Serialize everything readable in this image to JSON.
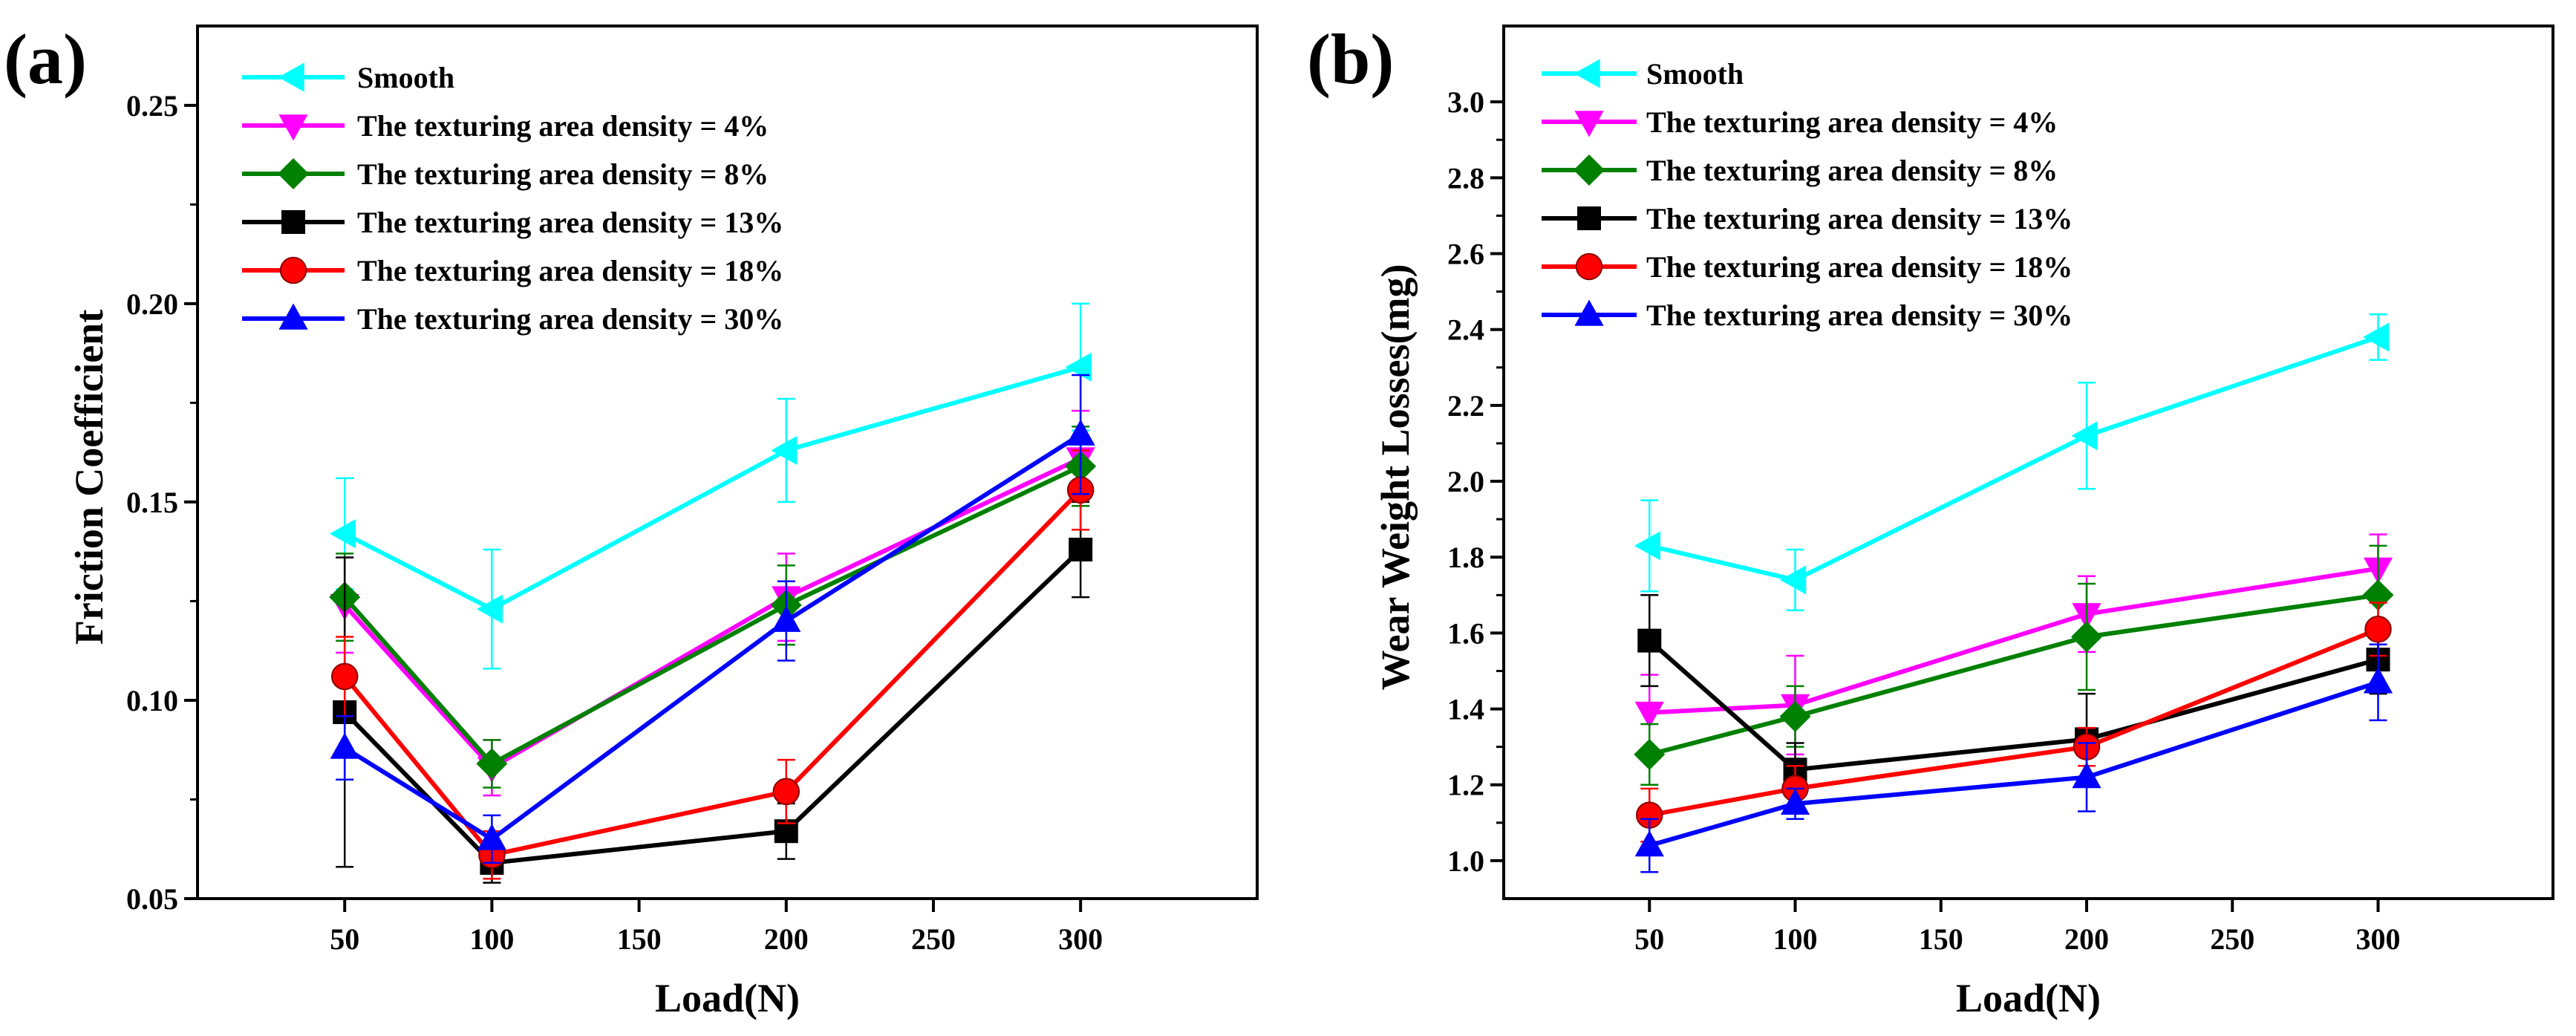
{
  "chart_data": [
    {
      "panel_label": "(a)",
      "type": "line",
      "xlabel": "Load(N)",
      "ylabel": "Friction Coefficient",
      "xlim": [
        0,
        360
      ],
      "ylim": [
        0.05,
        0.27
      ],
      "x": [
        50,
        100,
        200,
        300
      ],
      "xticks": [
        50,
        100,
        150,
        200,
        250,
        300
      ],
      "xtick_labels": [
        "50",
        "100",
        "150",
        "200",
        "250",
        "300"
      ],
      "yticks": [
        0.05,
        0.1,
        0.15,
        0.2,
        0.25
      ],
      "ytick_labels": [
        "0.05",
        "0.10",
        "0.15",
        "0.20",
        "0.25"
      ],
      "grid": false,
      "legend_position": "top-left",
      "series": [
        {
          "name": "Smooth",
          "color": "#00FFFF",
          "marker": "triangle-left",
          "values": [
            0.142,
            0.123,
            0.163,
            0.184
          ],
          "errors": [
            0.014,
            0.015,
            0.013,
            0.016
          ]
        },
        {
          "name": "The texturing area density = 4%",
          "color": "#FF00FF",
          "marker": "triangle-down",
          "values": [
            0.124,
            0.083,
            0.126,
            0.161
          ],
          "errors": [
            0.012,
            0.007,
            0.011,
            0.012
          ]
        },
        {
          "name": "The texturing area density = 8%",
          "color": "#008000",
          "marker": "diamond",
          "values": [
            0.126,
            0.084,
            0.124,
            0.159
          ],
          "errors": [
            0.011,
            0.006,
            0.01,
            0.01
          ]
        },
        {
          "name": "The texturing area density = 13%",
          "color": "#000000",
          "marker": "square",
          "values": [
            0.097,
            0.059,
            0.067,
            0.138
          ],
          "errors": [
            0.039,
            0.005,
            0.007,
            0.012
          ]
        },
        {
          "name": "The texturing area density = 18%",
          "color": "#FF0000",
          "marker": "circle",
          "values": [
            0.106,
            0.061,
            0.077,
            0.153
          ],
          "errors": [
            0.01,
            0.006,
            0.008,
            0.01
          ]
        },
        {
          "name": "The texturing area density = 30%",
          "color": "#0000FF",
          "marker": "triangle-up",
          "values": [
            0.088,
            0.065,
            0.12,
            0.167
          ],
          "errors": [
            0.008,
            0.006,
            0.01,
            0.015
          ]
        }
      ]
    },
    {
      "panel_label": "(b)",
      "type": "line",
      "xlabel": "Load(N)",
      "ylabel": "Wear Weight Losses(mg)",
      "xlim": [
        0,
        360
      ],
      "ylim": [
        0.9,
        3.2
      ],
      "x": [
        50,
        100,
        200,
        300
      ],
      "xticks": [
        50,
        100,
        150,
        200,
        250,
        300
      ],
      "xtick_labels": [
        "50",
        "100",
        "150",
        "200",
        "250",
        "300"
      ],
      "yticks": [
        1.0,
        1.2,
        1.4,
        1.6,
        1.8,
        2.0,
        2.2,
        2.4,
        2.6,
        2.8,
        3.0
      ],
      "ytick_labels": [
        "1.0",
        "1.2",
        "1.4",
        "1.6",
        "1.8",
        "2.0",
        "2.2",
        "2.4",
        "2.6",
        "2.8",
        "3.0"
      ],
      "grid": false,
      "legend_position": "top-left",
      "series": [
        {
          "name": "Smooth",
          "color": "#00FFFF",
          "marker": "triangle-left",
          "values": [
            1.83,
            1.74,
            2.12,
            2.38
          ],
          "errors": [
            0.12,
            0.08,
            0.14,
            0.06
          ]
        },
        {
          "name": "The texturing area density = 4%",
          "color": "#FF00FF",
          "marker": "triangle-down",
          "values": [
            1.39,
            1.41,
            1.65,
            1.77
          ],
          "errors": [
            0.1,
            0.13,
            0.1,
            0.09
          ]
        },
        {
          "name": "The texturing area density = 8%",
          "color": "#008000",
          "marker": "diamond",
          "values": [
            1.28,
            1.38,
            1.59,
            1.7
          ],
          "errors": [
            0.08,
            0.08,
            0.14,
            0.13
          ]
        },
        {
          "name": "The texturing area density = 13%",
          "color": "#000000",
          "marker": "square",
          "values": [
            1.58,
            1.24,
            1.32,
            1.53
          ],
          "errors": [
            0.12,
            0.07,
            0.12,
            0.09
          ]
        },
        {
          "name": "The texturing area density = 18%",
          "color": "#FF0000",
          "marker": "circle",
          "values": [
            1.12,
            1.19,
            1.3,
            1.61
          ],
          "errors": [
            0.07,
            0.06,
            0.05,
            0.07
          ]
        },
        {
          "name": "The texturing area density = 30%",
          "color": "#0000FF",
          "marker": "triangle-up",
          "values": [
            1.04,
            1.15,
            1.22,
            1.47
          ],
          "errors": [
            0.07,
            0.04,
            0.09,
            0.1
          ]
        }
      ]
    }
  ]
}
